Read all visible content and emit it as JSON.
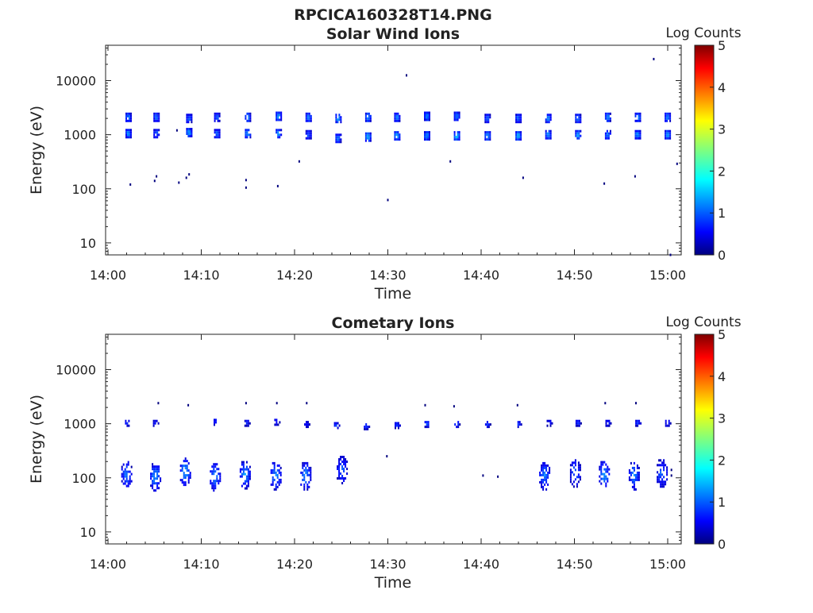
{
  "figure_title": "RPCICA160328T14.PNG",
  "colors": {
    "colormap": [
      "#00007f",
      "#0000ff",
      "#007fff",
      "#00ffff",
      "#7fff7f",
      "#ffff00",
      "#ff7f00",
      "#ff0000",
      "#7f0000"
    ],
    "axes": "#222222"
  },
  "chart_data": [
    {
      "type": "heatmap",
      "title": "Solar Wind Ions",
      "xlabel": "Time",
      "ylabel": "Energy (eV)",
      "x_ticks": [
        "14:00",
        "14:10",
        "14:20",
        "14:30",
        "14:40",
        "14:50",
        "15:00"
      ],
      "x_range_minutes": [
        0,
        61
      ],
      "y_scale": "log",
      "y_ticks": [
        "10",
        "100",
        "1000",
        "10000"
      ],
      "y_tick_values": [
        10,
        100,
        1000,
        10000
      ],
      "y_range": [
        6,
        45000
      ],
      "colorbar": {
        "label": "Log Counts",
        "ticks": [
          "0",
          "1",
          "2",
          "3",
          "4",
          "5"
        ],
        "range": [
          0,
          5
        ]
      },
      "scans": [
        {
          "t": 2.1,
          "peaks": [
            [
              2200,
              1.4
            ],
            [
              1100,
              1.5
            ]
          ]
        },
        {
          "t": 5.1,
          "peaks": [
            [
              2200,
              1.3
            ],
            [
              1100,
              1.2
            ]
          ]
        },
        {
          "t": 8.6,
          "peaks": [
            [
              2100,
              1.2
            ],
            [
              1150,
              1.6
            ]
          ]
        },
        {
          "t": 11.6,
          "peaks": [
            [
              2200,
              1.3
            ],
            [
              1100,
              1.3
            ]
          ]
        },
        {
          "t": 14.9,
          "peaks": [
            [
              2200,
              1.5
            ],
            [
              1100,
              1.6
            ]
          ]
        },
        {
          "t": 18.2,
          "peaks": [
            [
              2300,
              1.6
            ],
            [
              1100,
              1.5
            ]
          ]
        },
        {
          "t": 21.4,
          "peaks": [
            [
              2200,
              1.5
            ],
            [
              1050,
              1.2
            ]
          ]
        },
        {
          "t": 24.6,
          "peaks": [
            [
              2100,
              1.6
            ],
            [
              900,
              1.4
            ]
          ]
        },
        {
          "t": 27.8,
          "peaks": [
            [
              2200,
              1.6
            ],
            [
              950,
              1.8
            ]
          ]
        },
        {
          "t": 30.9,
          "peaks": [
            [
              2200,
              1.5
            ],
            [
              1000,
              1.7
            ]
          ]
        },
        {
          "t": 34.1,
          "peaks": [
            [
              2300,
              1.5
            ],
            [
              1000,
              1.6
            ]
          ]
        },
        {
          "t": 37.3,
          "peaks": [
            [
              2300,
              1.4
            ],
            [
              1000,
              1.8
            ]
          ]
        },
        {
          "t": 40.6,
          "peaks": [
            [
              2100,
              1.3
            ],
            [
              1000,
              1.6
            ]
          ]
        },
        {
          "t": 43.9,
          "peaks": [
            [
              2100,
              1.3
            ],
            [
              1000,
              1.7
            ]
          ]
        },
        {
          "t": 47.1,
          "peaks": [
            [
              2100,
              1.4
            ],
            [
              1050,
              1.5
            ]
          ]
        },
        {
          "t": 50.3,
          "peaks": [
            [
              2100,
              1.4
            ],
            [
              1050,
              1.6
            ]
          ]
        },
        {
          "t": 53.5,
          "peaks": [
            [
              2200,
              1.5
            ],
            [
              1050,
              1.4
            ]
          ]
        },
        {
          "t": 56.7,
          "peaks": [
            [
              2200,
              1.6
            ],
            [
              1050,
              1.6
            ]
          ]
        },
        {
          "t": 59.9,
          "peaks": [
            [
              2200,
              1.5
            ],
            [
              1050,
              1.6
            ]
          ]
        }
      ],
      "sparse_points": [
        {
          "t": 2.4,
          "e": 120
        },
        {
          "t": 5.0,
          "e": 140
        },
        {
          "t": 5.2,
          "e": 170
        },
        {
          "t": 7.6,
          "e": 130
        },
        {
          "t": 8.4,
          "e": 160
        },
        {
          "t": 8.7,
          "e": 185
        },
        {
          "t": 14.8,
          "e": 145
        },
        {
          "t": 14.8,
          "e": 105
        },
        {
          "t": 18.2,
          "e": 112
        },
        {
          "t": 20.5,
          "e": 320
        },
        {
          "t": 30.0,
          "e": 62
        },
        {
          "t": 32.0,
          "e": 12500
        },
        {
          "t": 36.7,
          "e": 320
        },
        {
          "t": 44.5,
          "e": 160
        },
        {
          "t": 53.2,
          "e": 125
        },
        {
          "t": 56.5,
          "e": 170
        },
        {
          "t": 58.5,
          "e": 25000
        },
        {
          "t": 60.3,
          "e": 6
        },
        {
          "t": 61.0,
          "e": 290
        },
        {
          "t": 7.4,
          "e": 1200
        }
      ]
    },
    {
      "type": "heatmap",
      "title": "Cometary Ions",
      "xlabel": "Time",
      "ylabel": "Energy (eV)",
      "x_ticks": [
        "14:00",
        "14:10",
        "14:20",
        "14:30",
        "14:40",
        "14:50",
        "15:00"
      ],
      "x_range_minutes": [
        0,
        61
      ],
      "y_scale": "log",
      "y_ticks": [
        "10",
        "100",
        "1000",
        "10000"
      ],
      "y_tick_values": [
        10,
        100,
        1000,
        10000
      ],
      "y_range": [
        6,
        45000
      ],
      "colorbar": {
        "label": "Log Counts",
        "ticks": [
          "0",
          "1",
          "2",
          "3",
          "4",
          "5"
        ],
        "range": [
          0,
          5
        ]
      },
      "high_energy_scans": [
        {
          "t": 2.0,
          "e": 1100,
          "v": 0.8
        },
        {
          "t": 5.0,
          "e": 1100,
          "v": 0.8
        },
        {
          "t": 11.5,
          "e": 1150,
          "v": 0.9
        },
        {
          "t": 14.8,
          "e": 1100,
          "v": 0.9
        },
        {
          "t": 18.0,
          "e": 1150,
          "v": 0.8
        },
        {
          "t": 21.2,
          "e": 1050,
          "v": 0.8
        },
        {
          "t": 24.4,
          "e": 1000,
          "v": 1.0
        },
        {
          "t": 27.6,
          "e": 950,
          "v": 1.0
        },
        {
          "t": 30.9,
          "e": 1000,
          "v": 1.1
        },
        {
          "t": 34.1,
          "e": 1050,
          "v": 1.1
        },
        {
          "t": 37.3,
          "e": 1050,
          "v": 1.1
        },
        {
          "t": 40.6,
          "e": 1050,
          "v": 1.0
        },
        {
          "t": 43.9,
          "e": 1050,
          "v": 0.9
        },
        {
          "t": 47.2,
          "e": 1100,
          "v": 0.8
        },
        {
          "t": 50.3,
          "e": 1100,
          "v": 0.9
        },
        {
          "t": 53.5,
          "e": 1100,
          "v": 1.0
        },
        {
          "t": 56.7,
          "e": 1100,
          "v": 1.0
        },
        {
          "t": 59.9,
          "e": 1100,
          "v": 0.9
        }
      ],
      "low_energy_clusters": [
        {
          "t": 1.9,
          "e": 120,
          "v": 1.3
        },
        {
          "t": 5.0,
          "e": 110,
          "v": 1.5
        },
        {
          "t": 8.2,
          "e": 140,
          "v": 1.6
        },
        {
          "t": 11.4,
          "e": 110,
          "v": 1.4
        },
        {
          "t": 14.6,
          "e": 120,
          "v": 1.5
        },
        {
          "t": 17.9,
          "e": 115,
          "v": 1.5
        },
        {
          "t": 21.1,
          "e": 115,
          "v": 1.4
        },
        {
          "t": 25.0,
          "e": 150,
          "v": 1.2
        },
        {
          "t": 46.7,
          "e": 115,
          "v": 1.3
        },
        {
          "t": 50.0,
          "e": 130,
          "v": 1.2
        },
        {
          "t": 53.1,
          "e": 120,
          "v": 1.5
        },
        {
          "t": 56.3,
          "e": 115,
          "v": 1.4
        },
        {
          "t": 59.3,
          "e": 130,
          "v": 1.2
        }
      ],
      "sparse_points": [
        {
          "t": 5.4,
          "e": 2400
        },
        {
          "t": 8.6,
          "e": 2200
        },
        {
          "t": 14.8,
          "e": 2400
        },
        {
          "t": 18.1,
          "e": 2400
        },
        {
          "t": 21.3,
          "e": 2400
        },
        {
          "t": 29.9,
          "e": 250
        },
        {
          "t": 34.0,
          "e": 2200
        },
        {
          "t": 37.1,
          "e": 2100
        },
        {
          "t": 40.2,
          "e": 110
        },
        {
          "t": 41.8,
          "e": 105
        },
        {
          "t": 43.9,
          "e": 2200
        },
        {
          "t": 53.3,
          "e": 2400
        },
        {
          "t": 56.6,
          "e": 2400
        },
        {
          "t": 60.4,
          "e": 110
        },
        {
          "t": 60.4,
          "e": 140
        }
      ]
    }
  ]
}
